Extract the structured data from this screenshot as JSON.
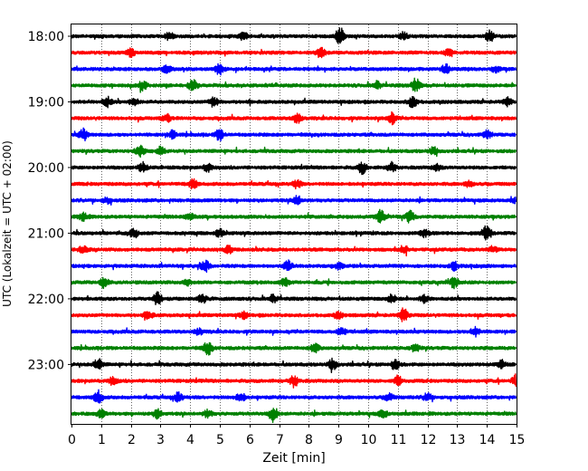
{
  "chart_data": {
    "type": "line",
    "title": "",
    "xlabel": "Zeit  [min]",
    "ylabel": "UTC (Lokalzeit = UTC + 02:00)",
    "xlim": [
      0,
      15
    ],
    "x_ticks": [
      0,
      1,
      2,
      3,
      4,
      5,
      6,
      7,
      8,
      9,
      10,
      11,
      12,
      13,
      14,
      15
    ],
    "x_tick_labels": [
      "0",
      "1",
      "2",
      "3",
      "4",
      "5",
      "6",
      "7",
      "8",
      "9",
      "10",
      "11",
      "12",
      "13",
      "14",
      "15"
    ],
    "y_ticks": [
      {
        "label": "18:00",
        "row": 0
      },
      {
        "label": "19:00",
        "row": 4
      },
      {
        "label": "20:00",
        "row": 8
      },
      {
        "label": "21:00",
        "row": 12
      },
      {
        "label": "22:00",
        "row": 16
      },
      {
        "label": "23:00",
        "row": 20
      }
    ],
    "row_colors": [
      "#000000",
      "#ff0000",
      "#0000ff",
      "#008000"
    ],
    "grid": "vertical-dotted",
    "traces": [
      {
        "start": "18:00",
        "events": [
          [
            9.05,
            9
          ],
          [
            14.1,
            6
          ],
          [
            3.3,
            4
          ],
          [
            5.8,
            4
          ],
          [
            11.2,
            4
          ]
        ]
      },
      {
        "start": "18:15",
        "events": [
          [
            8.4,
            5
          ],
          [
            2.0,
            4
          ],
          [
            12.7,
            3
          ]
        ]
      },
      {
        "start": "18:30",
        "events": [
          [
            5.0,
            6
          ],
          [
            12.6,
            5
          ],
          [
            3.2,
            4
          ],
          [
            14.3,
            3
          ]
        ]
      },
      {
        "start": "18:45",
        "events": [
          [
            4.1,
            7
          ],
          [
            11.6,
            7
          ],
          [
            2.4,
            5
          ],
          [
            10.3,
            4
          ]
        ]
      },
      {
        "start": "19:00",
        "events": [
          [
            11.5,
            7
          ],
          [
            1.2,
            5
          ],
          [
            2.1,
            4
          ],
          [
            4.8,
            5
          ],
          [
            14.7,
            4
          ]
        ]
      },
      {
        "start": "19:15",
        "events": [
          [
            10.8,
            6
          ],
          [
            7.6,
            5
          ],
          [
            3.2,
            4
          ]
        ]
      },
      {
        "start": "19:30",
        "events": [
          [
            0.4,
            6
          ],
          [
            5.0,
            6
          ],
          [
            3.4,
            4
          ],
          [
            14.0,
            4
          ]
        ]
      },
      {
        "start": "19:45",
        "events": [
          [
            2.3,
            6
          ],
          [
            3.0,
            4
          ],
          [
            12.2,
            4
          ]
        ]
      },
      {
        "start": "20:00",
        "events": [
          [
            9.8,
            6
          ],
          [
            10.8,
            5
          ],
          [
            2.4,
            5
          ],
          [
            4.6,
            4
          ],
          [
            12.3,
            3
          ]
        ]
      },
      {
        "start": "20:15",
        "events": [
          [
            4.1,
            5
          ],
          [
            7.6,
            4
          ],
          [
            13.4,
            3
          ]
        ]
      },
      {
        "start": "20:30",
        "events": [
          [
            7.6,
            5
          ],
          [
            1.2,
            3
          ],
          [
            15.0,
            3
          ]
        ]
      },
      {
        "start": "20:45",
        "events": [
          [
            10.4,
            8
          ],
          [
            11.4,
            6
          ],
          [
            0.4,
            4
          ],
          [
            4.0,
            3
          ]
        ]
      },
      {
        "start": "21:00",
        "events": [
          [
            14.0,
            8
          ],
          [
            2.1,
            5
          ],
          [
            5.0,
            4
          ],
          [
            11.9,
            4
          ]
        ]
      },
      {
        "start": "21:15",
        "events": [
          [
            0.4,
            4
          ],
          [
            5.3,
            4
          ],
          [
            11.2,
            4
          ],
          [
            14.2,
            3
          ]
        ]
      },
      {
        "start": "21:30",
        "events": [
          [
            4.5,
            6
          ],
          [
            7.3,
            5
          ],
          [
            9.0,
            3
          ],
          [
            12.9,
            4
          ]
        ]
      },
      {
        "start": "21:45",
        "events": [
          [
            12.9,
            6
          ],
          [
            1.1,
            5
          ],
          [
            7.2,
            4
          ],
          [
            3.9,
            3
          ]
        ]
      },
      {
        "start": "22:00",
        "events": [
          [
            2.9,
            7
          ],
          [
            4.4,
            5
          ],
          [
            6.8,
            4
          ],
          [
            10.8,
            4
          ],
          [
            11.9,
            4
          ]
        ]
      },
      {
        "start": "22:15",
        "events": [
          [
            11.2,
            7
          ],
          [
            2.6,
            4
          ],
          [
            9.0,
            3
          ],
          [
            5.8,
            3
          ]
        ]
      },
      {
        "start": "22:30",
        "events": [
          [
            13.6,
            5
          ],
          [
            9.1,
            4
          ],
          [
            4.3,
            3
          ]
        ]
      },
      {
        "start": "22:45",
        "events": [
          [
            4.6,
            7
          ],
          [
            8.2,
            5
          ],
          [
            11.6,
            4
          ]
        ]
      },
      {
        "start": "23:00",
        "events": [
          [
            0.9,
            6
          ],
          [
            8.8,
            6
          ],
          [
            10.9,
            5
          ],
          [
            14.5,
            4
          ]
        ]
      },
      {
        "start": "23:15",
        "events": [
          [
            15.0,
            8
          ],
          [
            7.5,
            6
          ],
          [
            11.0,
            5
          ],
          [
            1.4,
            4
          ]
        ]
      },
      {
        "start": "23:30",
        "events": [
          [
            0.9,
            7
          ],
          [
            3.6,
            5
          ],
          [
            5.7,
            5
          ],
          [
            10.7,
            4
          ],
          [
            12.0,
            4
          ]
        ]
      },
      {
        "start": "23:45",
        "events": [
          [
            6.8,
            8
          ],
          [
            2.9,
            5
          ],
          [
            1.0,
            4
          ],
          [
            4.6,
            4
          ],
          [
            10.5,
            4
          ]
        ]
      }
    ]
  }
}
